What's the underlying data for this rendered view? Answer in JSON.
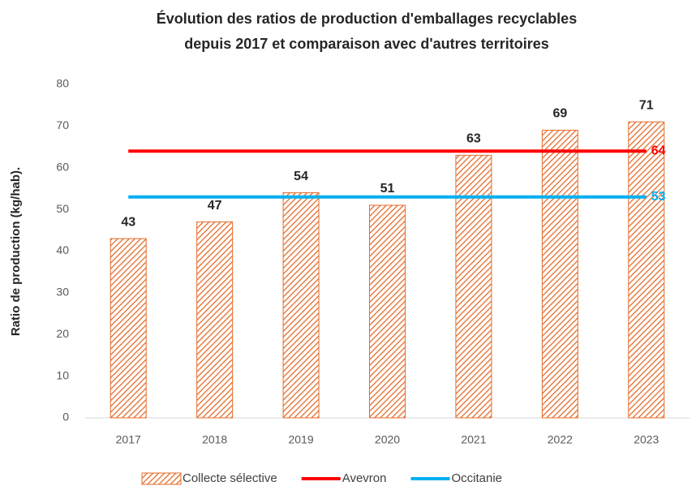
{
  "chart_data": {
    "type": "bar",
    "title": [
      "Évolution des ratios de production d'emballages recyclables",
      "depuis 2017 et comparaison avec d'autres territoires"
    ],
    "y_label": "Ratio de production (kg/hab).",
    "categories": [
      "2017",
      "2018",
      "2019",
      "2020",
      "2021",
      "2022",
      "2023"
    ],
    "series": [
      {
        "name": "Collecte sélective",
        "type": "bar",
        "color": "#e46c2a",
        "values": [
          43,
          47,
          54,
          51,
          63,
          69,
          71
        ]
      },
      {
        "name": "Avevron",
        "type": "line",
        "color": "#ff0000",
        "values": [
          64,
          64,
          64,
          64,
          64,
          64,
          64
        ]
      },
      {
        "name": "Occitanie",
        "type": "line",
        "color": "#00b0f0",
        "values": [
          53,
          53,
          53,
          53,
          53,
          53,
          53
        ]
      }
    ],
    "ylim": [
      0,
      80
    ],
    "yticks": [
      0,
      10,
      20,
      30,
      40,
      50,
      60,
      70,
      80
    ],
    "grid": false,
    "legend": "bottom"
  }
}
